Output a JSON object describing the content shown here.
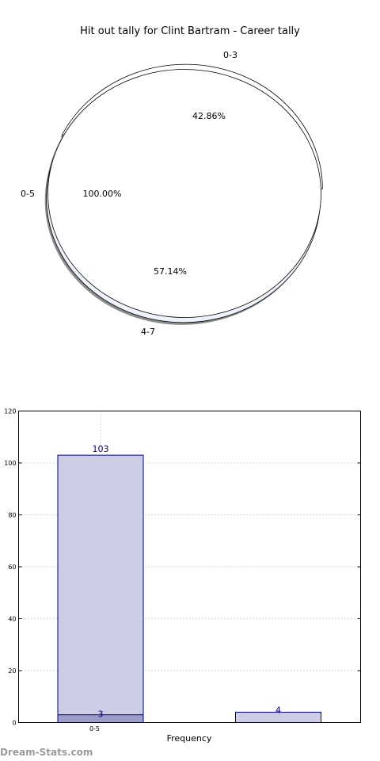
{
  "chart_data": [
    {
      "type": "pie",
      "title": "Hit out tally for Clint Bartram - Career tally",
      "rings": [
        {
          "name": "outer",
          "slices": [
            {
              "label": "0-3",
              "value": 42.86,
              "pct_label": "42.86%"
            },
            {
              "label": "4-7",
              "value": 57.14,
              "pct_label": "57.14%"
            }
          ]
        },
        {
          "name": "inner",
          "slices": [
            {
              "label": "0-5",
              "value": 100.0,
              "pct_label": "100.00%"
            }
          ]
        }
      ]
    },
    {
      "type": "bar",
      "xlabel": "Frequency",
      "ylabel": "",
      "ylim": [
        0,
        120
      ],
      "yticks": [
        "0",
        "20",
        "40",
        "60",
        "80",
        "100",
        "120"
      ],
      "grid": true,
      "categories": [
        "0-5",
        ""
      ],
      "series": [
        {
          "values": [
            103,
            4
          ]
        },
        {
          "values": [
            3,
            null
          ]
        }
      ],
      "data_labels": [
        "103",
        "3",
        "4"
      ]
    }
  ],
  "watermark": "Dream-Stats.com",
  "colors": {
    "bar_fill": "#cdcde6",
    "bar_stroke": "#00008b",
    "bar_inner_fill": "#9d9dc9",
    "label": "#000080",
    "pie_fill_white": "#ffffff",
    "pie_fill_blue": "#eef2fb",
    "shadow": "#8c8c8c",
    "grid": "#b0b0b0"
  }
}
